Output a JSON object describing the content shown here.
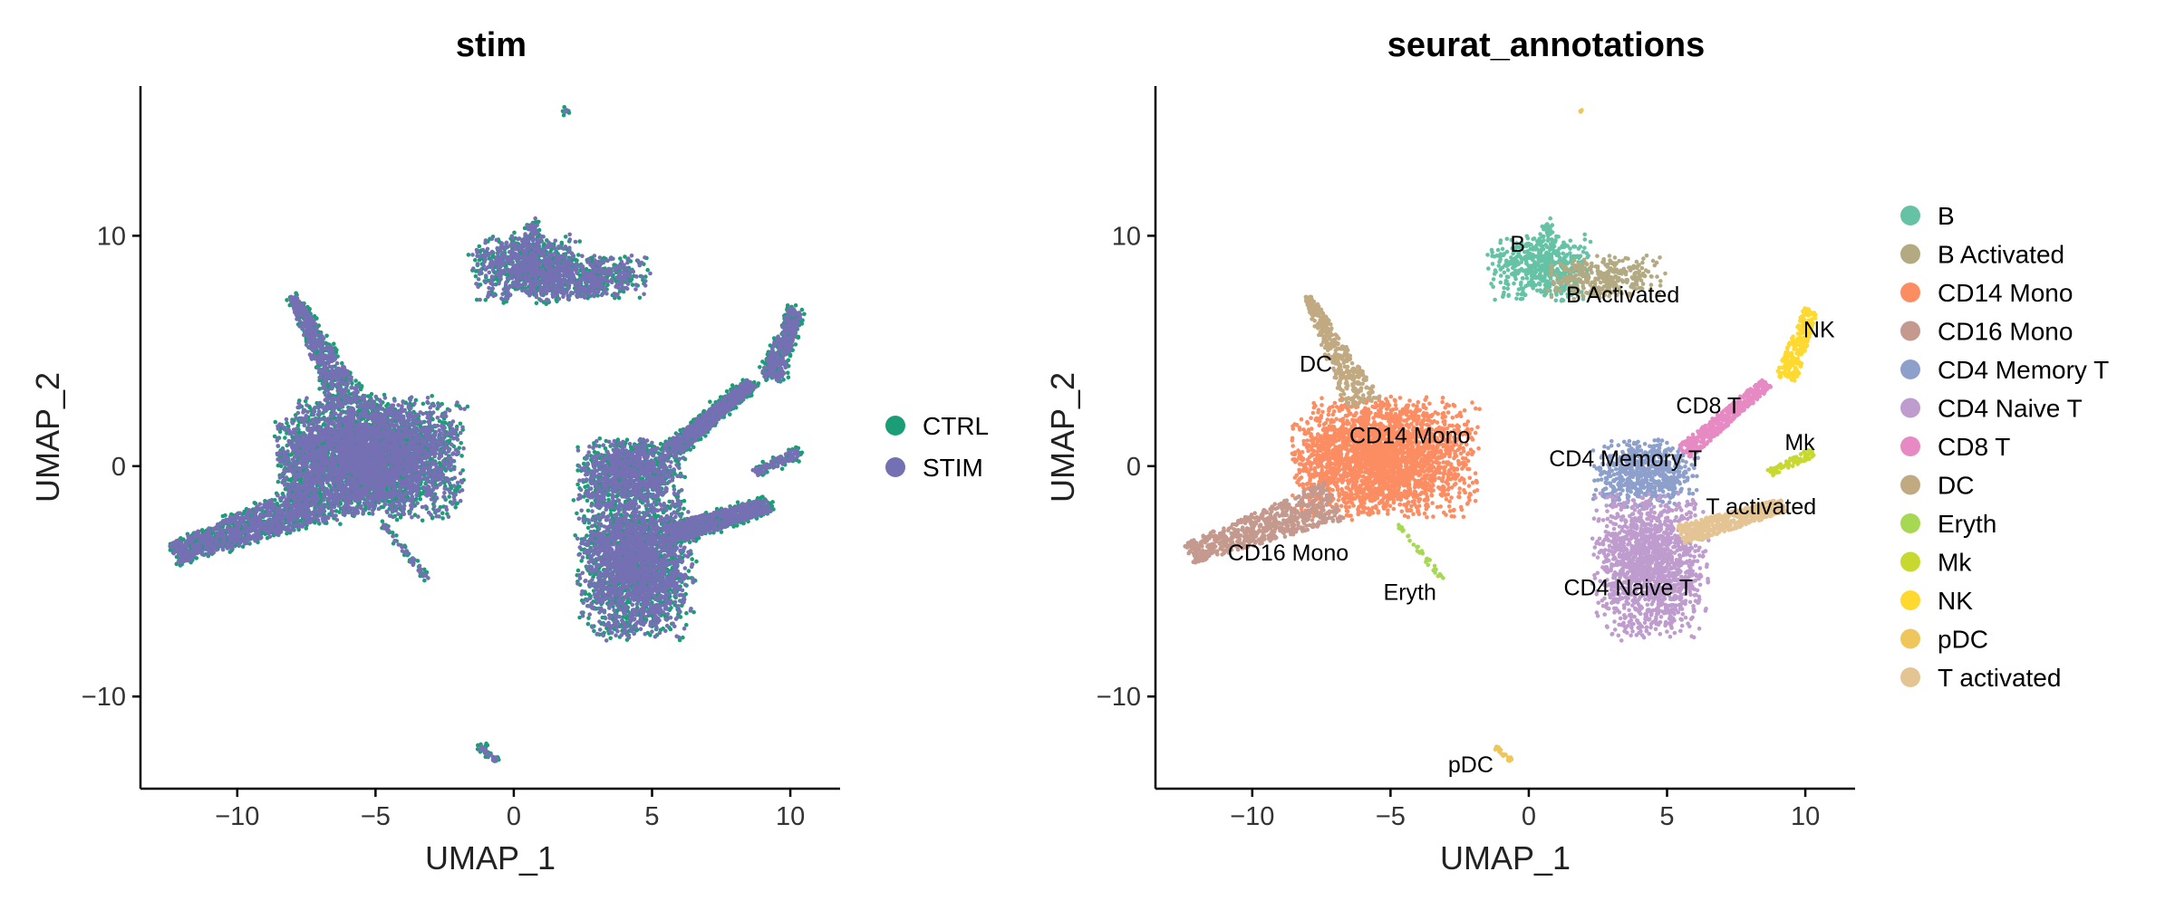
{
  "chart_data": [
    {
      "type": "scatter",
      "title": "stim",
      "xlabel": "UMAP_1",
      "ylabel": "UMAP_2",
      "xlim": [
        -13.5,
        11.8
      ],
      "ylim": [
        -14,
        16.5
      ],
      "x_ticks": [
        -10,
        -5,
        0,
        5,
        10
      ],
      "y_ticks": [
        -10,
        0,
        10
      ],
      "x_tick_labels": [
        "−10",
        "−5",
        "0",
        "5",
        "10"
      ],
      "y_tick_labels": [
        "−10",
        "0",
        "10"
      ],
      "grid": false,
      "legend_placement": "right",
      "series": [
        {
          "name": "CTRL",
          "color": "#1B9E77"
        },
        {
          "name": "STIM",
          "color": "#7570B3"
        }
      ],
      "labels": []
    },
    {
      "type": "scatter",
      "title": "seurat_annotations",
      "xlabel": "UMAP_1",
      "ylabel": "UMAP_2",
      "xlim": [
        -13.5,
        11.8
      ],
      "ylim": [
        -14,
        16.5
      ],
      "x_ticks": [
        -10,
        -5,
        0,
        5,
        10
      ],
      "y_ticks": [
        -10,
        0,
        10
      ],
      "x_tick_labels": [
        "−10",
        "−5",
        "0",
        "5",
        "10"
      ],
      "y_tick_labels": [
        "−10",
        "0",
        "10"
      ],
      "grid": false,
      "legend_placement": "right",
      "series": [
        {
          "name": "B",
          "color": "#66C2A5"
        },
        {
          "name": "B Activated",
          "color": "#B3A982"
        },
        {
          "name": "CD14 Mono",
          "color": "#FC8D62"
        },
        {
          "name": "CD16 Mono",
          "color": "#C4998E"
        },
        {
          "name": "CD4 Memory T",
          "color": "#8DA0CB"
        },
        {
          "name": "CD4 Naive T",
          "color": "#BE9CCD"
        },
        {
          "name": "CD8 T",
          "color": "#E78AC3"
        },
        {
          "name": "DC",
          "color": "#C1AA82"
        },
        {
          "name": "Eryth",
          "color": "#A6D854"
        },
        {
          "name": "Mk",
          "color": "#C7D930"
        },
        {
          "name": "NK",
          "color": "#FFD92F"
        },
        {
          "name": "pDC",
          "color": "#EFC659"
        },
        {
          "name": "T activated",
          "color": "#E5C494"
        }
      ],
      "labels": [
        {
          "text": "B",
          "x": -0.4,
          "y": 9.3
        },
        {
          "text": "B Activated",
          "x": 3.4,
          "y": 7.1
        },
        {
          "text": "DC",
          "x": -7.7,
          "y": 4.1
        },
        {
          "text": "CD14 Mono",
          "x": -4.3,
          "y": 1.0
        },
        {
          "text": "CD4 Memory T",
          "x": 3.5,
          "y": 0.0
        },
        {
          "text": "CD8 T",
          "x": 6.5,
          "y": 2.3
        },
        {
          "text": "NK",
          "x": 10.5,
          "y": 5.6
        },
        {
          "text": "Mk",
          "x": 9.8,
          "y": 0.7
        },
        {
          "text": "T activated",
          "x": 8.4,
          "y": -2.1
        },
        {
          "text": "CD16 Mono",
          "x": -8.7,
          "y": -4.1
        },
        {
          "text": "Eryth",
          "x": -4.3,
          "y": -5.8
        },
        {
          "text": "CD4 Naive T",
          "x": 3.6,
          "y": -5.6
        },
        {
          "text": "pDC",
          "x": -2.1,
          "y": -13.3
        }
      ]
    }
  ]
}
